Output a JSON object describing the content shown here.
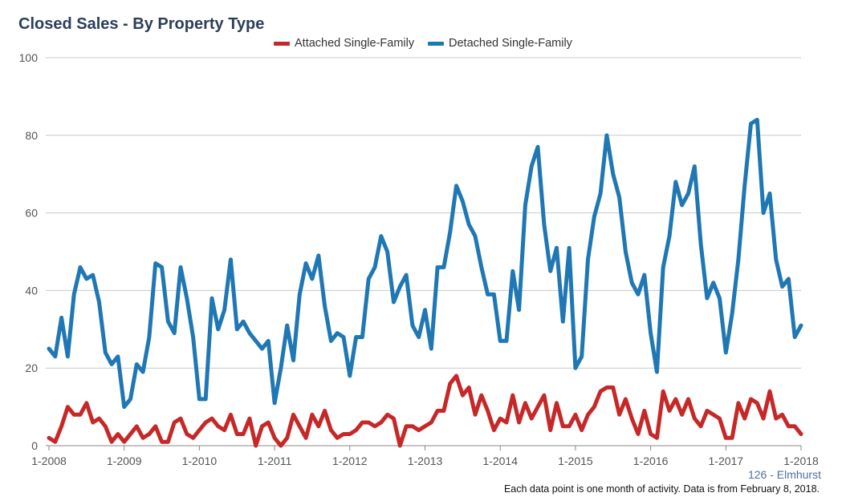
{
  "chart_data": {
    "type": "line",
    "title": "Closed Sales - By Property Type",
    "x_tick_labels": [
      "1-2008",
      "1-2009",
      "1-2010",
      "1-2011",
      "1-2012",
      "1-2013",
      "1-2014",
      "1-2015",
      "1-2016",
      "1-2017",
      "1-2018"
    ],
    "x_start": "2008-01",
    "x_end": "2018-01",
    "ylim": [
      0,
      100
    ],
    "y_ticks": [
      0,
      20,
      40,
      60,
      80,
      100
    ],
    "grid": "horizontal",
    "legend_position": "top-center",
    "series": [
      {
        "name": "Attached Single-Family",
        "color": "#c62828",
        "values": [
          2,
          1,
          5,
          10,
          8,
          8,
          11,
          6,
          7,
          5,
          1,
          3,
          1,
          3,
          5,
          2,
          3,
          5,
          1,
          1,
          6,
          7,
          3,
          2,
          4,
          6,
          7,
          5,
          4,
          8,
          3,
          3,
          7,
          0,
          5,
          6,
          2,
          0,
          2,
          8,
          5,
          2,
          8,
          5,
          9,
          4,
          2,
          3,
          3,
          4,
          6,
          6,
          5,
          6,
          8,
          7,
          0,
          5,
          5,
          4,
          5,
          6,
          9,
          9,
          16,
          18,
          13,
          15,
          8,
          13,
          9,
          4,
          7,
          6,
          13,
          6,
          11,
          7,
          10,
          13,
          4,
          11,
          5,
          5,
          8,
          4,
          8,
          10,
          14,
          15,
          15,
          8,
          12,
          7,
          3,
          9,
          3,
          2,
          14,
          9,
          12,
          8,
          12,
          7,
          5,
          9,
          8,
          7,
          2,
          2,
          11,
          7,
          12,
          11,
          7,
          14,
          7,
          8,
          5,
          5,
          3
        ]
      },
      {
        "name": "Detached Single-Family",
        "color": "#1f77b4",
        "values": [
          25,
          23,
          33,
          23,
          39,
          46,
          43,
          44,
          37,
          24,
          21,
          23,
          10,
          12,
          21,
          19,
          28,
          47,
          46,
          32,
          29,
          46,
          38,
          28,
          12,
          12,
          38,
          30,
          35,
          48,
          30,
          32,
          29,
          27,
          25,
          27,
          11,
          20,
          31,
          22,
          39,
          47,
          43,
          49,
          36,
          27,
          29,
          28,
          18,
          28,
          28,
          43,
          46,
          54,
          50,
          37,
          41,
          44,
          31,
          28,
          35,
          25,
          46,
          46,
          55,
          67,
          63,
          57,
          54,
          46,
          39,
          39,
          27,
          27,
          45,
          35,
          62,
          72,
          77,
          57,
          45,
          51,
          32,
          51,
          20,
          23,
          48,
          59,
          65,
          80,
          70,
          64,
          50,
          42,
          39,
          44,
          29,
          19,
          46,
          54,
          68,
          62,
          65,
          72,
          52,
          38,
          42,
          38,
          24,
          34,
          48,
          67,
          83,
          84,
          60,
          65,
          48,
          41,
          43,
          28,
          31
        ]
      }
    ]
  },
  "footer": {
    "source": "126 - Elmhurst",
    "note": "Each data point is one month of activity. Data is from February 8, 2018."
  }
}
